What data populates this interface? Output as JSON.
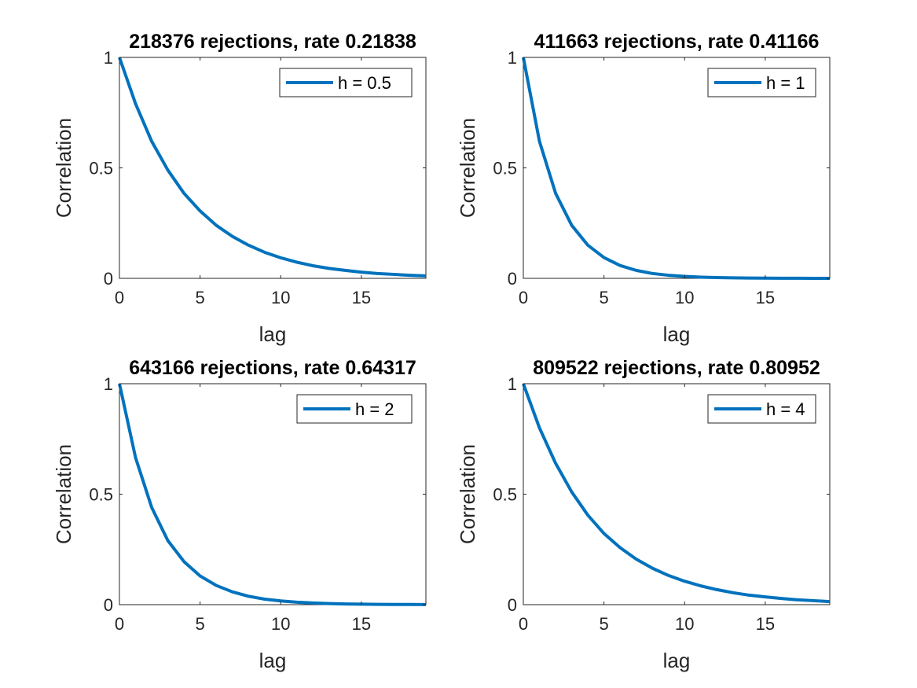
{
  "chart_data": [
    {
      "type": "line",
      "title": "218376 rejections, rate 0.21838",
      "xlabel": "lag",
      "ylabel": "Correlation",
      "xlim": [
        0,
        19
      ],
      "ylim": [
        0,
        1
      ],
      "xticks": [
        0,
        5,
        10,
        15
      ],
      "yticks": [
        0,
        0.5,
        1
      ],
      "grid": false,
      "legend_position": "top-right",
      "series": [
        {
          "name": "h = 0.5",
          "color": "#0072BD",
          "x": [
            0,
            1,
            2,
            3,
            4,
            5,
            6,
            7,
            8,
            9,
            10,
            11,
            12,
            13,
            14,
            15,
            16,
            17,
            18,
            19
          ],
          "values": [
            1.0,
            0.79,
            0.62,
            0.49,
            0.385,
            0.305,
            0.24,
            0.19,
            0.15,
            0.118,
            0.093,
            0.073,
            0.057,
            0.045,
            0.036,
            0.028,
            0.022,
            0.018,
            0.014,
            0.011
          ]
        }
      ]
    },
    {
      "type": "line",
      "title": "411663 rejections, rate 0.41166",
      "xlabel": "lag",
      "ylabel": "Correlation",
      "xlim": [
        0,
        19
      ],
      "ylim": [
        0,
        1
      ],
      "xticks": [
        0,
        5,
        10,
        15
      ],
      "yticks": [
        0,
        0.5,
        1
      ],
      "grid": false,
      "legend_position": "top-right",
      "series": [
        {
          "name": "h = 1",
          "color": "#0072BD",
          "x": [
            0,
            1,
            2,
            3,
            4,
            5,
            6,
            7,
            8,
            9,
            10,
            11,
            12,
            13,
            14,
            15,
            16,
            17,
            18,
            19
          ],
          "values": [
            1.0,
            0.62,
            0.385,
            0.24,
            0.15,
            0.094,
            0.058,
            0.036,
            0.022,
            0.014,
            0.009,
            0.0055,
            0.0034,
            0.0021,
            0.0013,
            0.0008,
            0.0005,
            0.0003,
            0.0002,
            0.0001
          ]
        }
      ]
    },
    {
      "type": "line",
      "title": "643166 rejections, rate 0.64317",
      "xlabel": "lag",
      "ylabel": "Correlation",
      "xlim": [
        0,
        19
      ],
      "ylim": [
        0,
        1
      ],
      "xticks": [
        0,
        5,
        10,
        15
      ],
      "yticks": [
        0,
        0.5,
        1
      ],
      "grid": false,
      "legend_position": "top-right",
      "series": [
        {
          "name": "h = 2",
          "color": "#0072BD",
          "x": [
            0,
            1,
            2,
            3,
            4,
            5,
            6,
            7,
            8,
            9,
            10,
            11,
            12,
            13,
            14,
            15,
            16,
            17,
            18,
            19
          ],
          "values": [
            1.0,
            0.665,
            0.44,
            0.29,
            0.195,
            0.13,
            0.087,
            0.058,
            0.038,
            0.025,
            0.017,
            0.011,
            0.0075,
            0.005,
            0.0033,
            0.0022,
            0.0015,
            0.001,
            0.0007,
            0.0005
          ]
        }
      ]
    },
    {
      "type": "line",
      "title": "809522 rejections, rate 0.80952",
      "xlabel": "lag",
      "ylabel": "Correlation",
      "xlim": [
        0,
        19
      ],
      "ylim": [
        0,
        1
      ],
      "xticks": [
        0,
        5,
        10,
        15
      ],
      "yticks": [
        0,
        0.5,
        1
      ],
      "grid": false,
      "legend_position": "top-right",
      "series": [
        {
          "name": "h = 4",
          "color": "#0072BD",
          "x": [
            0,
            1,
            2,
            3,
            4,
            5,
            6,
            7,
            8,
            9,
            10,
            11,
            12,
            13,
            14,
            15,
            16,
            17,
            18,
            19
          ],
          "values": [
            1.0,
            0.8,
            0.64,
            0.51,
            0.405,
            0.322,
            0.258,
            0.206,
            0.165,
            0.132,
            0.106,
            0.085,
            0.068,
            0.054,
            0.043,
            0.035,
            0.028,
            0.022,
            0.018,
            0.014
          ]
        }
      ]
    }
  ]
}
